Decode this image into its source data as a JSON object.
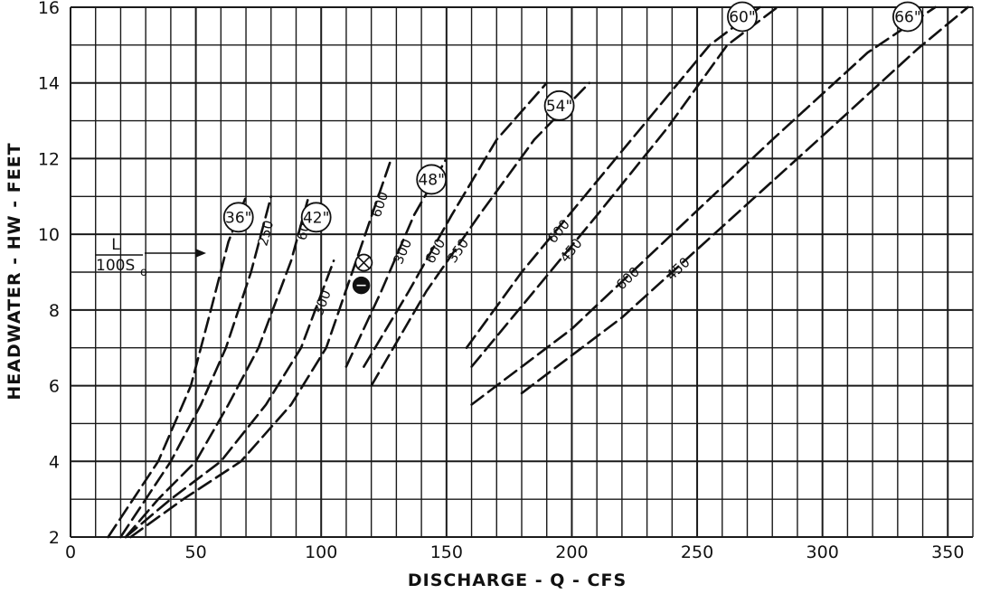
{
  "chart_data": {
    "type": "line",
    "xlabel": "DISCHARGE - Q - CFS",
    "ylabel": "HEADWATER - HW - FEET",
    "xlim": [
      0,
      360
    ],
    "ylim": [
      2,
      16
    ],
    "x_ticks": [
      0,
      50,
      100,
      150,
      200,
      250,
      300,
      350
    ],
    "y_ticks": [
      2,
      4,
      6,
      8,
      10,
      12,
      14,
      16
    ],
    "grid": true,
    "key_label": {
      "numerator": "L",
      "denominator": "100S",
      "subscript": "o"
    },
    "pipe_sizes": [
      {
        "label": "36\"",
        "x": 67,
        "y": 10.45
      },
      {
        "label": "42\"",
        "x": 98,
        "y": 10.45
      },
      {
        "label": "48\"",
        "x": 144,
        "y": 11.45
      },
      {
        "label": "54\"",
        "x": 195,
        "y": 13.4
      },
      {
        "label": "60\"",
        "x": 268,
        "y": 15.75
      },
      {
        "label": "66\"",
        "x": 334,
        "y": 15.75
      }
    ],
    "series": [
      {
        "label": "450",
        "x": [
          15,
          25,
          35,
          48,
          56,
          63,
          70
        ],
        "y": [
          2,
          3,
          4,
          6,
          8,
          9.8,
          11
        ]
      },
      {
        "label": "250",
        "x": [
          20,
          30,
          40,
          52,
          62,
          72,
          80
        ],
        "y": [
          2,
          3,
          4,
          5.5,
          7,
          9,
          11
        ]
      },
      {
        "label": "600",
        "x": [
          22,
          35,
          50,
          63,
          75,
          88,
          95
        ],
        "y": [
          2,
          3,
          4,
          5.5,
          7,
          9.3,
          11
        ]
      },
      {
        "label": "300",
        "x": [
          22,
          40,
          60,
          78,
          92,
          105
        ],
        "y": [
          2,
          3,
          4,
          5.5,
          7,
          9.3
        ]
      },
      {
        "label": "600",
        "x": [
          24,
          45,
          68,
          88,
          102,
          115,
          128
        ],
        "y": [
          2,
          3,
          4,
          5.5,
          7,
          9.5,
          12
        ]
      },
      {
        "label": "300",
        "x": [
          110,
          124,
          137,
          150
        ],
        "y": [
          6.5,
          8.5,
          10.5,
          12
        ]
      },
      {
        "label": "600",
        "x": [
          117,
          135,
          152,
          170,
          190
        ],
        "y": [
          6.5,
          8.5,
          10.5,
          12.5,
          14
        ]
      },
      {
        "label": "350",
        "x": [
          120,
          142,
          163,
          185,
          207
        ],
        "y": [
          6,
          8.5,
          10.5,
          12.5,
          14
        ]
      },
      {
        "label": "600",
        "x": [
          158,
          180,
          205,
          230,
          255,
          275
        ],
        "y": [
          7,
          9,
          11,
          13,
          15,
          16
        ]
      },
      {
        "label": "450",
        "x": [
          160,
          185,
          210,
          238,
          262,
          282
        ],
        "y": [
          6.5,
          8.5,
          10.5,
          12.8,
          15,
          16
        ]
      },
      {
        "label": "600",
        "x": [
          160,
          200,
          240,
          280,
          318,
          345
        ],
        "y": [
          5.5,
          7.5,
          10,
          12.5,
          14.8,
          16
        ]
      },
      {
        "label": "450",
        "x": [
          180,
          220,
          260,
          300,
          338,
          358
        ],
        "y": [
          5.8,
          7.8,
          10.2,
          12.6,
          14.9,
          16
        ]
      }
    ],
    "markers": [
      {
        "symbol": "circle-x",
        "x": 117,
        "y": 9.25
      },
      {
        "symbol": "filled-circle",
        "x": 116,
        "y": 8.65
      }
    ]
  }
}
